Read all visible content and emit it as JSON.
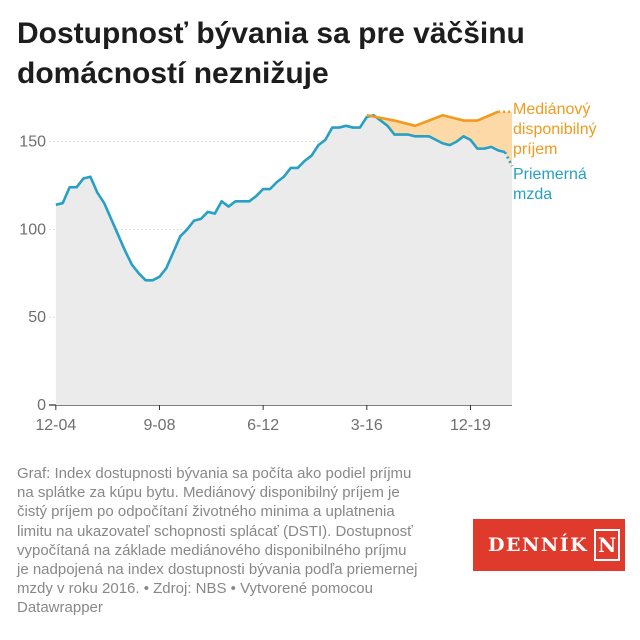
{
  "title": "Dostupnosť bývania sa pre väčšinu\ndomácností neznižuje",
  "footnote": "Graf: Index dostupnosti bývania sa počíta ako podiel príjmu\nna splátke za kúpu bytu. Mediánový disponibilný príjem je\nčistý príjem po odpočítaní životného minima a uplatnenia\nlimitu na ukazovateľ schopnosti splácať (DSTI). Dostupnosť\nvypočítaná na základe mediánového disponibilného príjmu\nje nadpojená na index dostupnosti bývania podľa priemernej\nmzdy v roku 2016. • Zdroj: NBS • Vytvorené pomocou\nDatawrapper",
  "logo": {
    "text": "DENNÍK",
    "letter": "N"
  },
  "colors": {
    "median": "#f29a1e",
    "median_fill": "#fcd9a6",
    "wage": "#26a0c4",
    "area": "#ebebeb",
    "logo_bg": "#e03a2c"
  },
  "chart_data": {
    "type": "line",
    "title": "Dostupnosť bývania sa pre väčšinu domácností neznižuje",
    "x_tick_labels": [
      "12-04",
      "9-08",
      "6-12",
      "3-16",
      "12-19"
    ],
    "x_tick_positions": [
      2004.917,
      2008.667,
      2012.417,
      2016.167,
      2019.917
    ],
    "xlim": [
      2004.67,
      2021.42
    ],
    "ylim": [
      0,
      168
    ],
    "y_ticks": [
      0,
      50,
      100,
      150
    ],
    "grid": true,
    "area_under": "Priemerná mzda",
    "series": [
      {
        "name": "Priemerná mzda",
        "color": "#26a0c4",
        "x": [
          2004.917,
          2005.167,
          2005.417,
          2005.667,
          2005.917,
          2006.167,
          2006.417,
          2006.667,
          2006.917,
          2007.167,
          2007.417,
          2007.667,
          2007.917,
          2008.167,
          2008.417,
          2008.667,
          2008.917,
          2009.167,
          2009.417,
          2009.667,
          2009.917,
          2010.167,
          2010.417,
          2010.667,
          2010.917,
          2011.167,
          2011.417,
          2011.667,
          2011.917,
          2012.167,
          2012.417,
          2012.667,
          2012.917,
          2013.167,
          2013.417,
          2013.667,
          2013.917,
          2014.167,
          2014.417,
          2014.667,
          2014.917,
          2015.167,
          2015.417,
          2015.667,
          2015.917,
          2016.167,
          2016.417,
          2016.667,
          2016.917,
          2017.167,
          2017.417,
          2017.667,
          2017.917,
          2018.167,
          2018.417,
          2018.667,
          2018.917,
          2019.167,
          2019.417,
          2019.667,
          2019.917,
          2020.167,
          2020.417,
          2020.667,
          2020.917,
          2021.167
        ],
        "values": [
          114,
          115,
          124,
          124,
          129,
          130,
          121,
          115,
          106,
          97,
          88,
          80,
          75,
          71,
          71,
          73,
          78,
          87,
          96,
          100,
          105,
          106,
          110,
          109,
          116,
          113,
          116,
          116,
          116,
          119,
          123,
          123,
          127,
          130,
          135,
          135,
          139,
          142,
          148,
          151,
          158,
          158,
          159,
          158,
          158,
          164,
          165,
          162,
          159,
          154,
          154,
          154,
          153,
          153,
          153,
          151,
          149,
          148,
          150,
          153,
          151,
          146,
          146,
          147,
          145,
          144
        ]
      },
      {
        "name": "Mediánový disponibilný príjem",
        "color": "#f29a1e",
        "x": [
          2016.167,
          2017.167,
          2017.917,
          2018.917,
          2019.667,
          2020.167,
          2020.917
        ],
        "values": [
          165,
          162,
          159,
          165,
          162,
          162,
          167
        ]
      }
    ],
    "extensions": {
      "Priemerná mzda": {
        "x": [
          2021.167,
          2021.42
        ],
        "values": [
          144,
          136
        ]
      },
      "Mediánový disponibilný príjem": {
        "x": [
          2020.917,
          2021.42
        ],
        "values": [
          167,
          167
        ]
      }
    },
    "series_labels": [
      {
        "series": "Mediánový disponibilný príjem",
        "lines": [
          "Mediánový",
          "disponibilný",
          "príjem"
        ]
      },
      {
        "series": "Priemerná mzda",
        "lines": [
          "Priemerná",
          "mzda"
        ]
      }
    ]
  }
}
